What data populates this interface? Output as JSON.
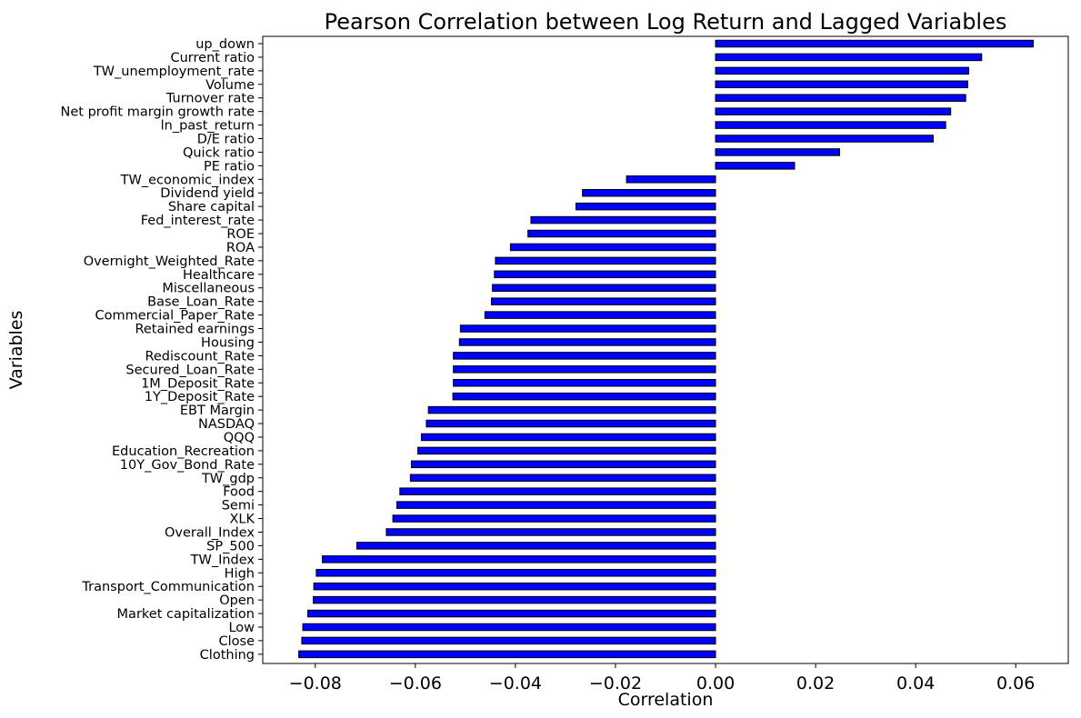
{
  "chart_data": {
    "type": "bar",
    "orientation": "horizontal",
    "title": "Pearson Correlation between Log Return and Lagged Variables",
    "xlabel": "Correlation",
    "ylabel": "Variables",
    "xlim": [
      -0.0905,
      0.0705
    ],
    "x_ticks": [
      -0.08,
      -0.06,
      -0.04,
      -0.02,
      0.0,
      0.02,
      0.04,
      0.06
    ],
    "x_tick_labels": [
      "−0.08",
      "−0.06",
      "−0.04",
      "−0.02",
      "0.00",
      "0.02",
      "0.04",
      "0.06"
    ],
    "grid": false,
    "legend": "none",
    "bar_color": "#0000ff",
    "edge_color": "#000000",
    "categories": [
      "up_down",
      "Current ratio",
      "TW_unemployment_rate",
      "Volume",
      "Turnover rate",
      "Net profit margin growth rate",
      "ln_past_return",
      "D/E ratio",
      "Quick ratio",
      "PE ratio",
      "TW_economic_index",
      "Dividend yield",
      "Share capital",
      "Fed_interest_rate",
      "ROE",
      "ROA",
      "Overnight_Weighted_Rate",
      "Healthcare",
      "Miscellaneous",
      "Base_Loan_Rate",
      "Commercial_Paper_Rate",
      "Retained earnings",
      "Housing",
      "Rediscount_Rate",
      "Secured_Loan_Rate",
      "1M_Deposit_Rate",
      "1Y_Deposit_Rate",
      "EBT Margin",
      "NASDAQ",
      "QQQ",
      "Education_Recreation",
      "10Y_Gov_Bond_Rate",
      "TW_gdp",
      "Food",
      "Semi",
      "XLK",
      "Overall_Index",
      "SP_500",
      "TW_Index",
      "High",
      "Transport_Communication",
      "Open",
      "Market capitalization",
      "Low",
      "Close",
      "Clothing"
    ],
    "values": [
      0.0635,
      0.0532,
      0.0506,
      0.0504,
      0.05,
      0.047,
      0.046,
      0.0435,
      0.0248,
      0.0158,
      -0.0178,
      -0.0266,
      -0.0279,
      -0.0369,
      -0.0375,
      -0.041,
      -0.044,
      -0.0442,
      -0.0446,
      -0.0448,
      -0.0461,
      -0.051,
      -0.0512,
      -0.0524,
      -0.0524,
      -0.0524,
      -0.0525,
      -0.0574,
      -0.0578,
      -0.0588,
      -0.0595,
      -0.0608,
      -0.061,
      -0.0631,
      -0.0637,
      -0.0645,
      -0.0658,
      -0.0717,
      -0.0786,
      -0.0798,
      -0.0803,
      -0.0804,
      -0.0815,
      -0.0825,
      -0.0827,
      -0.0833
    ]
  }
}
